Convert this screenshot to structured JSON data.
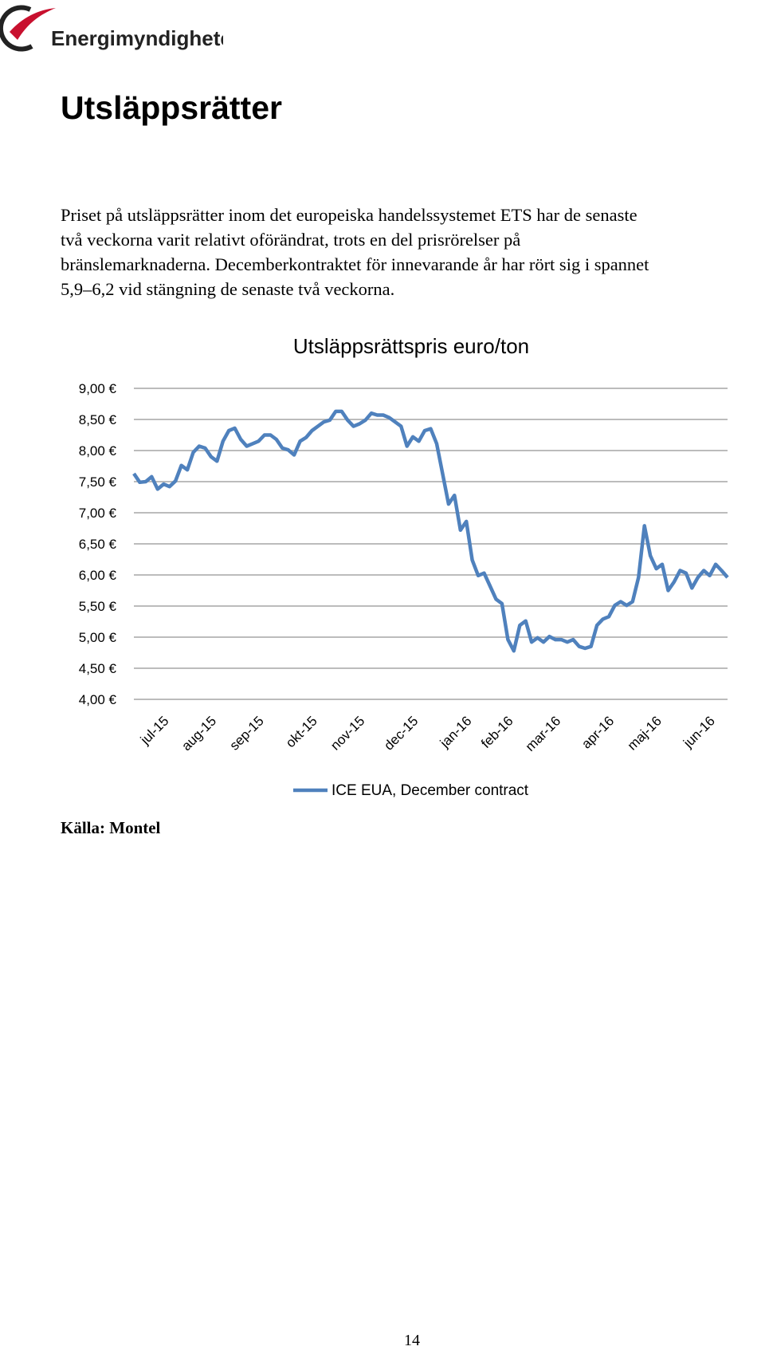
{
  "logo": {
    "text": "Energimyndigheten"
  },
  "title": "Utsläppsrätter",
  "paragraph": [
    "Priset på utsläppsrätter inom det europeiska handelssystemet ETS har de senaste",
    "två veckorna varit relativt oförändrat, trots en del prisrörelser på",
    "bränslemarknaderna. Decemberkontraktet för innevarande år har rört sig i spannet",
    "5,9–6,2 vid stängning de senaste två veckorna."
  ],
  "chart_data": {
    "type": "line",
    "title": "Utsläppsrättspris euro/ton",
    "categories": [
      null,
      null,
      null,
      null,
      null,
      null,
      "jul-15",
      null,
      null,
      null,
      null,
      null,
      null,
      null,
      "aug-15",
      null,
      null,
      null,
      null,
      null,
      null,
      null,
      "sep-15",
      null,
      null,
      null,
      null,
      null,
      null,
      null,
      null,
      "okt-15",
      null,
      null,
      null,
      null,
      null,
      null,
      null,
      "nov-15",
      null,
      null,
      null,
      null,
      null,
      null,
      null,
      null,
      "dec-15",
      null,
      null,
      null,
      null,
      null,
      null,
      null,
      null,
      "jan-16",
      null,
      null,
      null,
      null,
      null,
      null,
      "feb-16",
      null,
      null,
      null,
      null,
      null,
      null,
      null,
      "mar-16",
      null,
      null,
      null,
      null,
      null,
      null,
      null,
      null,
      "apr-16",
      null,
      null,
      null,
      null,
      null,
      null,
      null,
      "maj-16",
      null,
      null,
      null,
      null,
      null,
      null,
      null,
      null,
      "jun-16",
      null,
      null
    ],
    "series": [
      {
        "name": "ICE EUA, December contract",
        "color": "#4f81bd",
        "values": [
          7.63,
          7.49,
          7.5,
          7.58,
          7.38,
          7.46,
          7.42,
          7.51,
          7.76,
          7.69,
          7.97,
          8.07,
          8.04,
          7.9,
          7.83,
          8.15,
          8.32,
          8.36,
          8.18,
          8.07,
          8.11,
          8.15,
          8.25,
          8.25,
          8.18,
          8.04,
          8.01,
          7.93,
          8.15,
          8.21,
          8.32,
          8.39,
          8.46,
          8.49,
          8.63,
          8.63,
          8.49,
          8.39,
          8.43,
          8.49,
          8.6,
          8.57,
          8.57,
          8.53,
          8.46,
          8.39,
          8.07,
          8.22,
          8.15,
          8.32,
          8.35,
          8.11,
          7.63,
          7.14,
          7.28,
          6.72,
          6.86,
          6.24,
          5.99,
          6.03,
          5.82,
          5.61,
          5.54,
          4.96,
          4.78,
          5.19,
          5.26,
          4.92,
          4.99,
          4.92,
          5.01,
          4.96,
          4.96,
          4.92,
          4.96,
          4.85,
          4.82,
          4.85,
          5.19,
          5.29,
          5.33,
          5.51,
          5.57,
          5.51,
          5.57,
          5.96,
          6.79,
          6.31,
          6.1,
          6.17,
          5.75,
          5.89,
          6.07,
          6.03,
          5.79,
          5.96,
          6.07,
          5.99,
          6.17,
          6.07,
          5.96
        ]
      }
    ],
    "ylim": [
      4,
      9
    ],
    "yticks": [
      {
        "value": 4,
        "label": "4,00 €"
      },
      {
        "value": 4.5,
        "label": "4,50 €"
      },
      {
        "value": 5,
        "label": "5,00 €"
      },
      {
        "value": 5.5,
        "label": "5,50 €"
      },
      {
        "value": 6,
        "label": "6,00 €"
      },
      {
        "value": 6.5,
        "label": "6,50 €"
      },
      {
        "value": 7,
        "label": "7,00 €"
      },
      {
        "value": 7.5,
        "label": "7,50 €"
      },
      {
        "value": 8,
        "label": "8,00 €"
      },
      {
        "value": 8.5,
        "label": "8,50 €"
      },
      {
        "value": 9,
        "label": "9,00 €"
      }
    ],
    "grid": true,
    "legend": "bottom"
  },
  "source": "Källa: Montel",
  "page_number": "14"
}
